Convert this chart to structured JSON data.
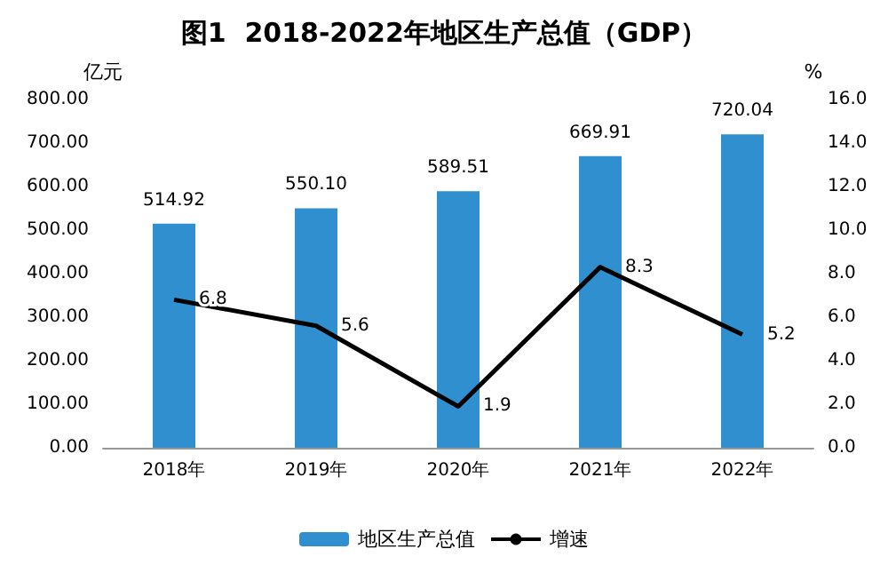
{
  "chart_data": {
    "type": "bar",
    "title": "图1  2018-2022年地区生产总值（GDP）",
    "ylabel": "亿元",
    "y2label": "%",
    "categories": [
      "2018年",
      "2019年",
      "2020年",
      "2021年",
      "2022年"
    ],
    "series": [
      {
        "name": "地区生产总值",
        "color": "#2f8fcf",
        "values": [
          514.92,
          550.1,
          589.51,
          669.91,
          720.04
        ],
        "value_labels": [
          "514.92",
          "550.10",
          "589.51",
          "669.91",
          "720.04"
        ]
      },
      {
        "name": "增速",
        "type": "line",
        "axis": "y2",
        "color": "#000000",
        "values": [
          6.8,
          5.6,
          1.9,
          8.3,
          5.2
        ],
        "value_labels": [
          "6.8",
          "5.6",
          "1.9",
          "8.3",
          "5.2"
        ]
      }
    ],
    "ylim": [
      0,
      800
    ],
    "yticks": [
      {
        "value": 0,
        "label": "0.00"
      },
      {
        "value": 100,
        "label": "100.00"
      },
      {
        "value": 200,
        "label": "200.00"
      },
      {
        "value": 300,
        "label": "300.00"
      },
      {
        "value": 400,
        "label": "400.00"
      },
      {
        "value": 500,
        "label": "500.00"
      },
      {
        "value": 600,
        "label": "600.00"
      },
      {
        "value": 700,
        "label": "700.00"
      },
      {
        "value": 800,
        "label": "800.00"
      }
    ],
    "y2lim": [
      0,
      16
    ],
    "y2ticks": [
      {
        "value": 0,
        "label": "0.0"
      },
      {
        "value": 2,
        "label": "2.0"
      },
      {
        "value": 4,
        "label": "4.0"
      },
      {
        "value": 6,
        "label": "6.0"
      },
      {
        "value": 8,
        "label": "8.0"
      },
      {
        "value": 10,
        "label": "10.0"
      },
      {
        "value": 12,
        "label": "12.0"
      },
      {
        "value": 14,
        "label": "14.0"
      },
      {
        "value": 16,
        "label": "16.0"
      }
    ],
    "legend": "bottom"
  }
}
